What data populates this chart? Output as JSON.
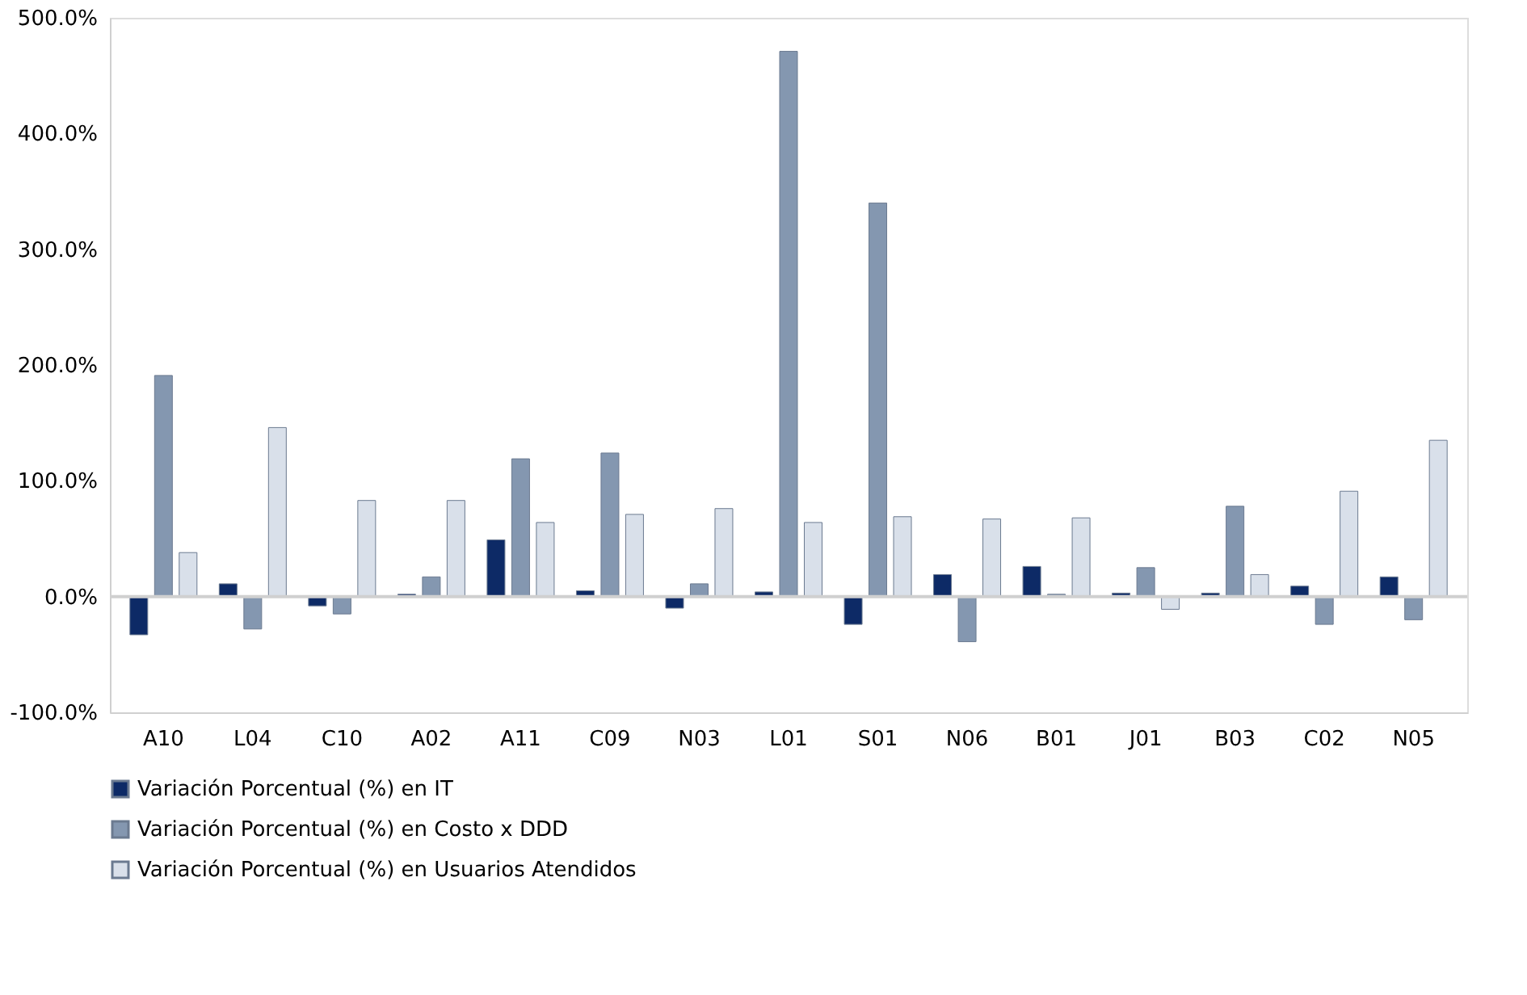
{
  "chart_data": {
    "type": "bar",
    "categories": [
      "A10",
      "L04",
      "C10",
      "A02",
      "A11",
      "C09",
      "N03",
      "L01",
      "S01",
      "N06",
      "B01",
      "J01",
      "B03",
      "C02",
      "N05"
    ],
    "series": [
      {
        "name": "Variación Porcentual (%) en IT",
        "color": "#0d2a66",
        "values": [
          -33,
          11,
          -8,
          2,
          49,
          5,
          -10,
          4,
          -24,
          19,
          26,
          3,
          3,
          9,
          17
        ]
      },
      {
        "name": "Variación Porcentual (%) en Costo x DDD",
        "color": "#8497b0",
        "values": [
          191,
          -28,
          -15,
          17,
          119,
          124,
          11,
          471,
          340,
          -39,
          2,
          25,
          78,
          -24,
          -20
        ]
      },
      {
        "name": "Variación Porcentual (%) en Usuarios Atendidos",
        "color": "#d9e0ea",
        "values": [
          38,
          146,
          83,
          83,
          64,
          71,
          76,
          64,
          69,
          67,
          68,
          -11,
          19,
          91,
          135
        ]
      }
    ],
    "ylim": [
      -100,
      500
    ],
    "yticks": [
      {
        "value": -100,
        "label": "-100.0%"
      },
      {
        "value": 0,
        "label": "0.0%"
      },
      {
        "value": 100,
        "label": "100.0%"
      },
      {
        "value": 200,
        "label": "200.0%"
      },
      {
        "value": 300,
        "label": "300.0%"
      },
      {
        "value": 400,
        "label": "400.0%"
      },
      {
        "value": 500,
        "label": "500.0%"
      }
    ],
    "ref_lines": [
      {
        "axis": "y",
        "value": 0,
        "color": "#d0d0d0"
      }
    ],
    "grid": false,
    "legend": "bottom"
  }
}
